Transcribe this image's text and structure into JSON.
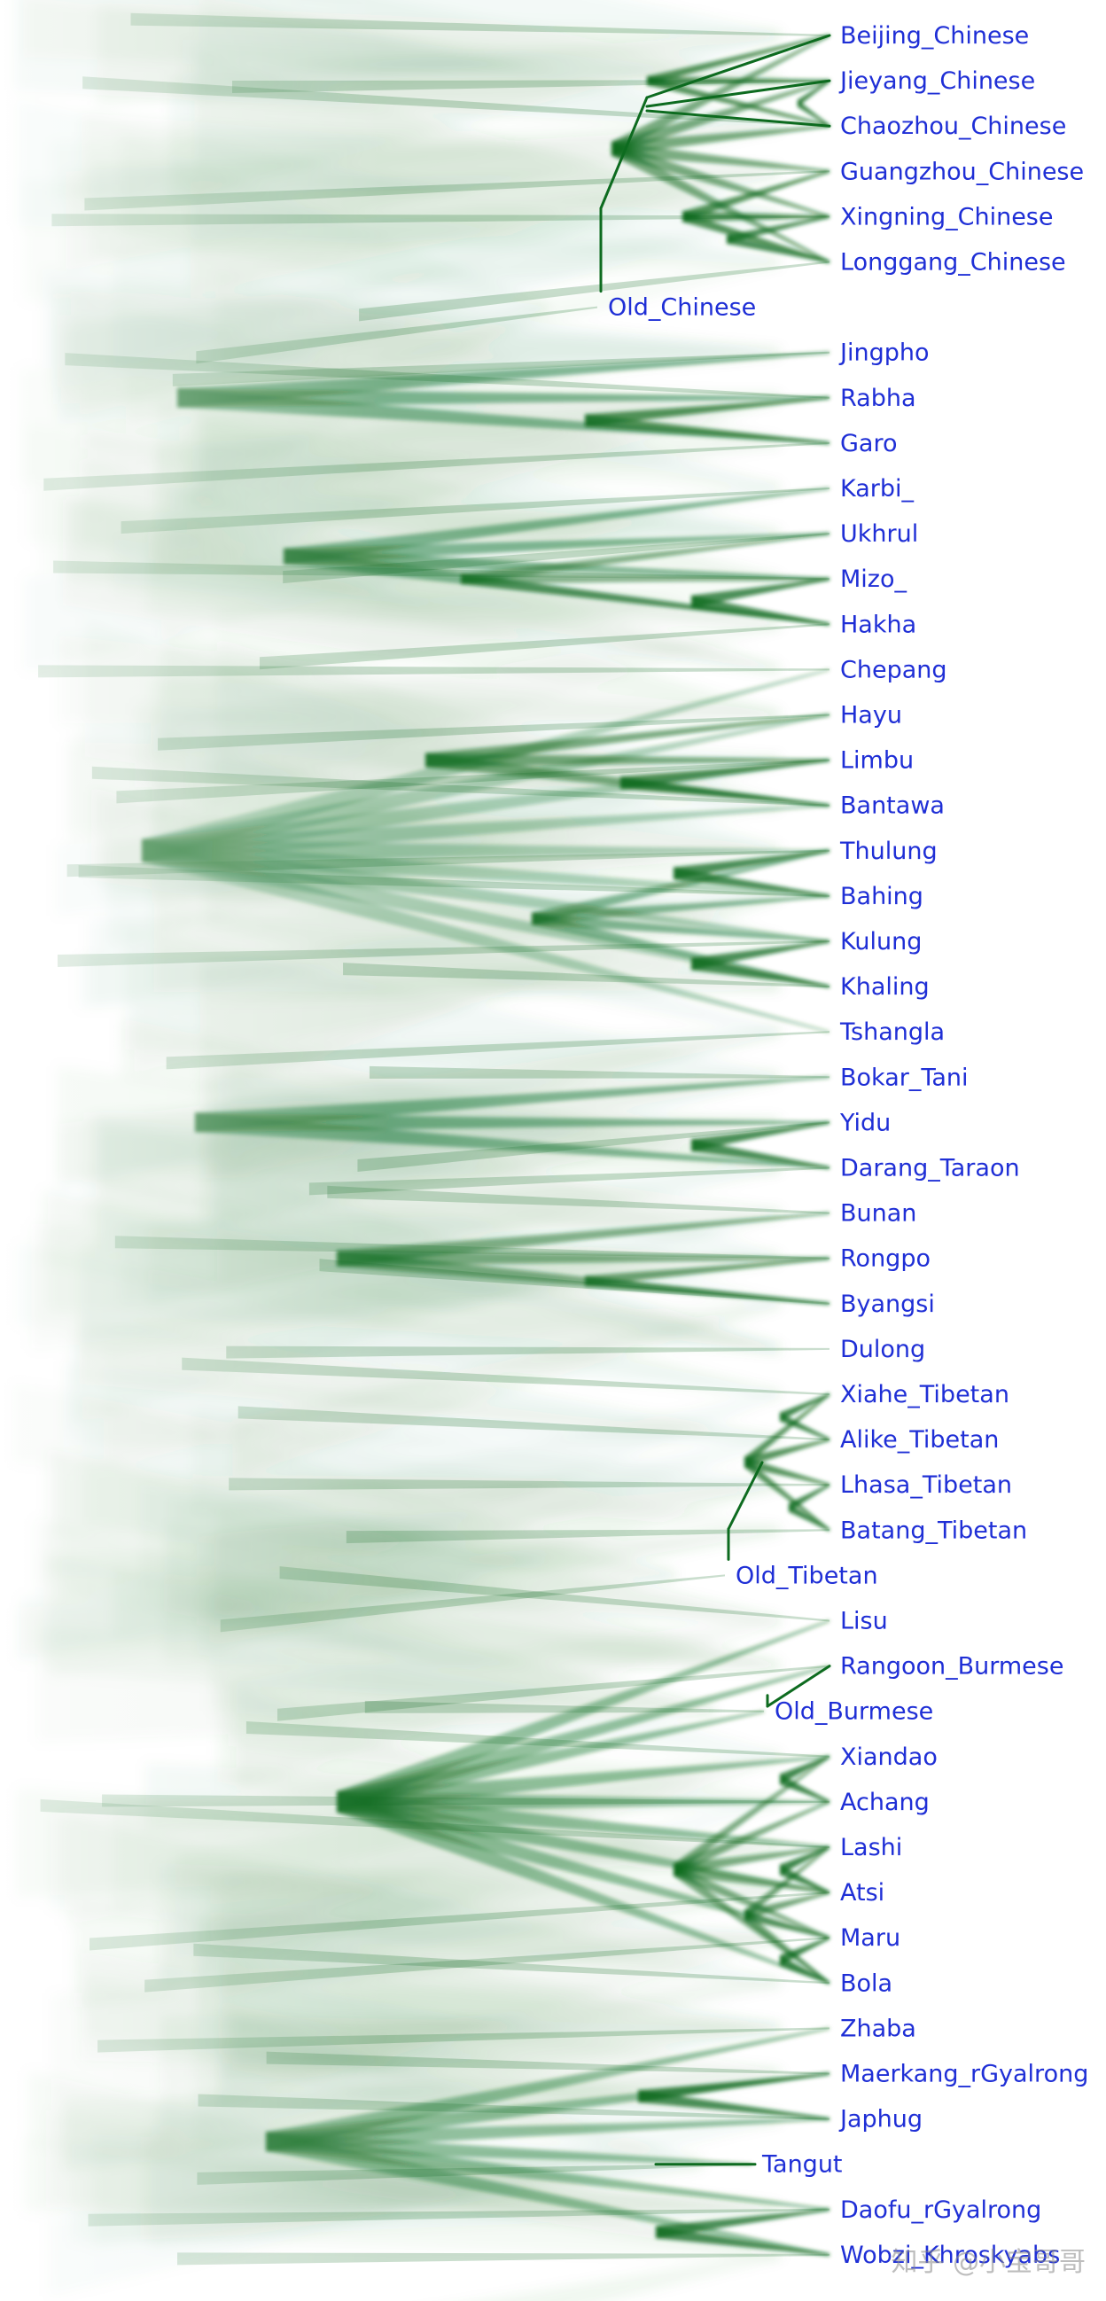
{
  "tree": {
    "colors": {
      "branch": "#0d6b1f",
      "haze": "#2e7d3a",
      "label": "#1f2fd6"
    },
    "taxa": [
      "Beijing_Chinese",
      "Jieyang_Chinese",
      "Chaozhou_Chinese",
      "Guangzhou_Chinese",
      "Xingning_Chinese",
      "Longgang_Chinese",
      "Old_Chinese",
      "Jingpho",
      "Rabha",
      "Garo",
      "Karbi_",
      "Ukhrul",
      "Mizo_",
      "Hakha",
      "Chepang",
      "Hayu",
      "Limbu",
      "Bantawa",
      "Thulung",
      "Bahing",
      "Kulung",
      "Khaling",
      "Tshangla",
      "Bokar_Tani",
      "Yidu",
      "Darang_Taraon",
      "Bunan",
      "Rongpo",
      "Byangsi",
      "Dulong",
      "Xiahe_Tibetan",
      "Alike_Tibetan",
      "Lhasa_Tibetan",
      "Batang_Tibetan",
      "Old_Tibetan",
      "Lisu",
      "Rangoon_Burmese",
      "Old_Burmese",
      "Xiandao",
      "Achang",
      "Lashi",
      "Atsi",
      "Maru",
      "Bola",
      "Zhaba",
      "Maerkang_rGyalrong",
      "Japhug",
      "Tangut",
      "Daofu_rGyalrong",
      "Wobzi_Khroskyabs"
    ],
    "ancient_taxa": [
      "Old_Chinese",
      "Old_Tibetan",
      "Old_Burmese",
      "Tangut"
    ]
  },
  "watermark": "知乎 @小宝哥哥"
}
